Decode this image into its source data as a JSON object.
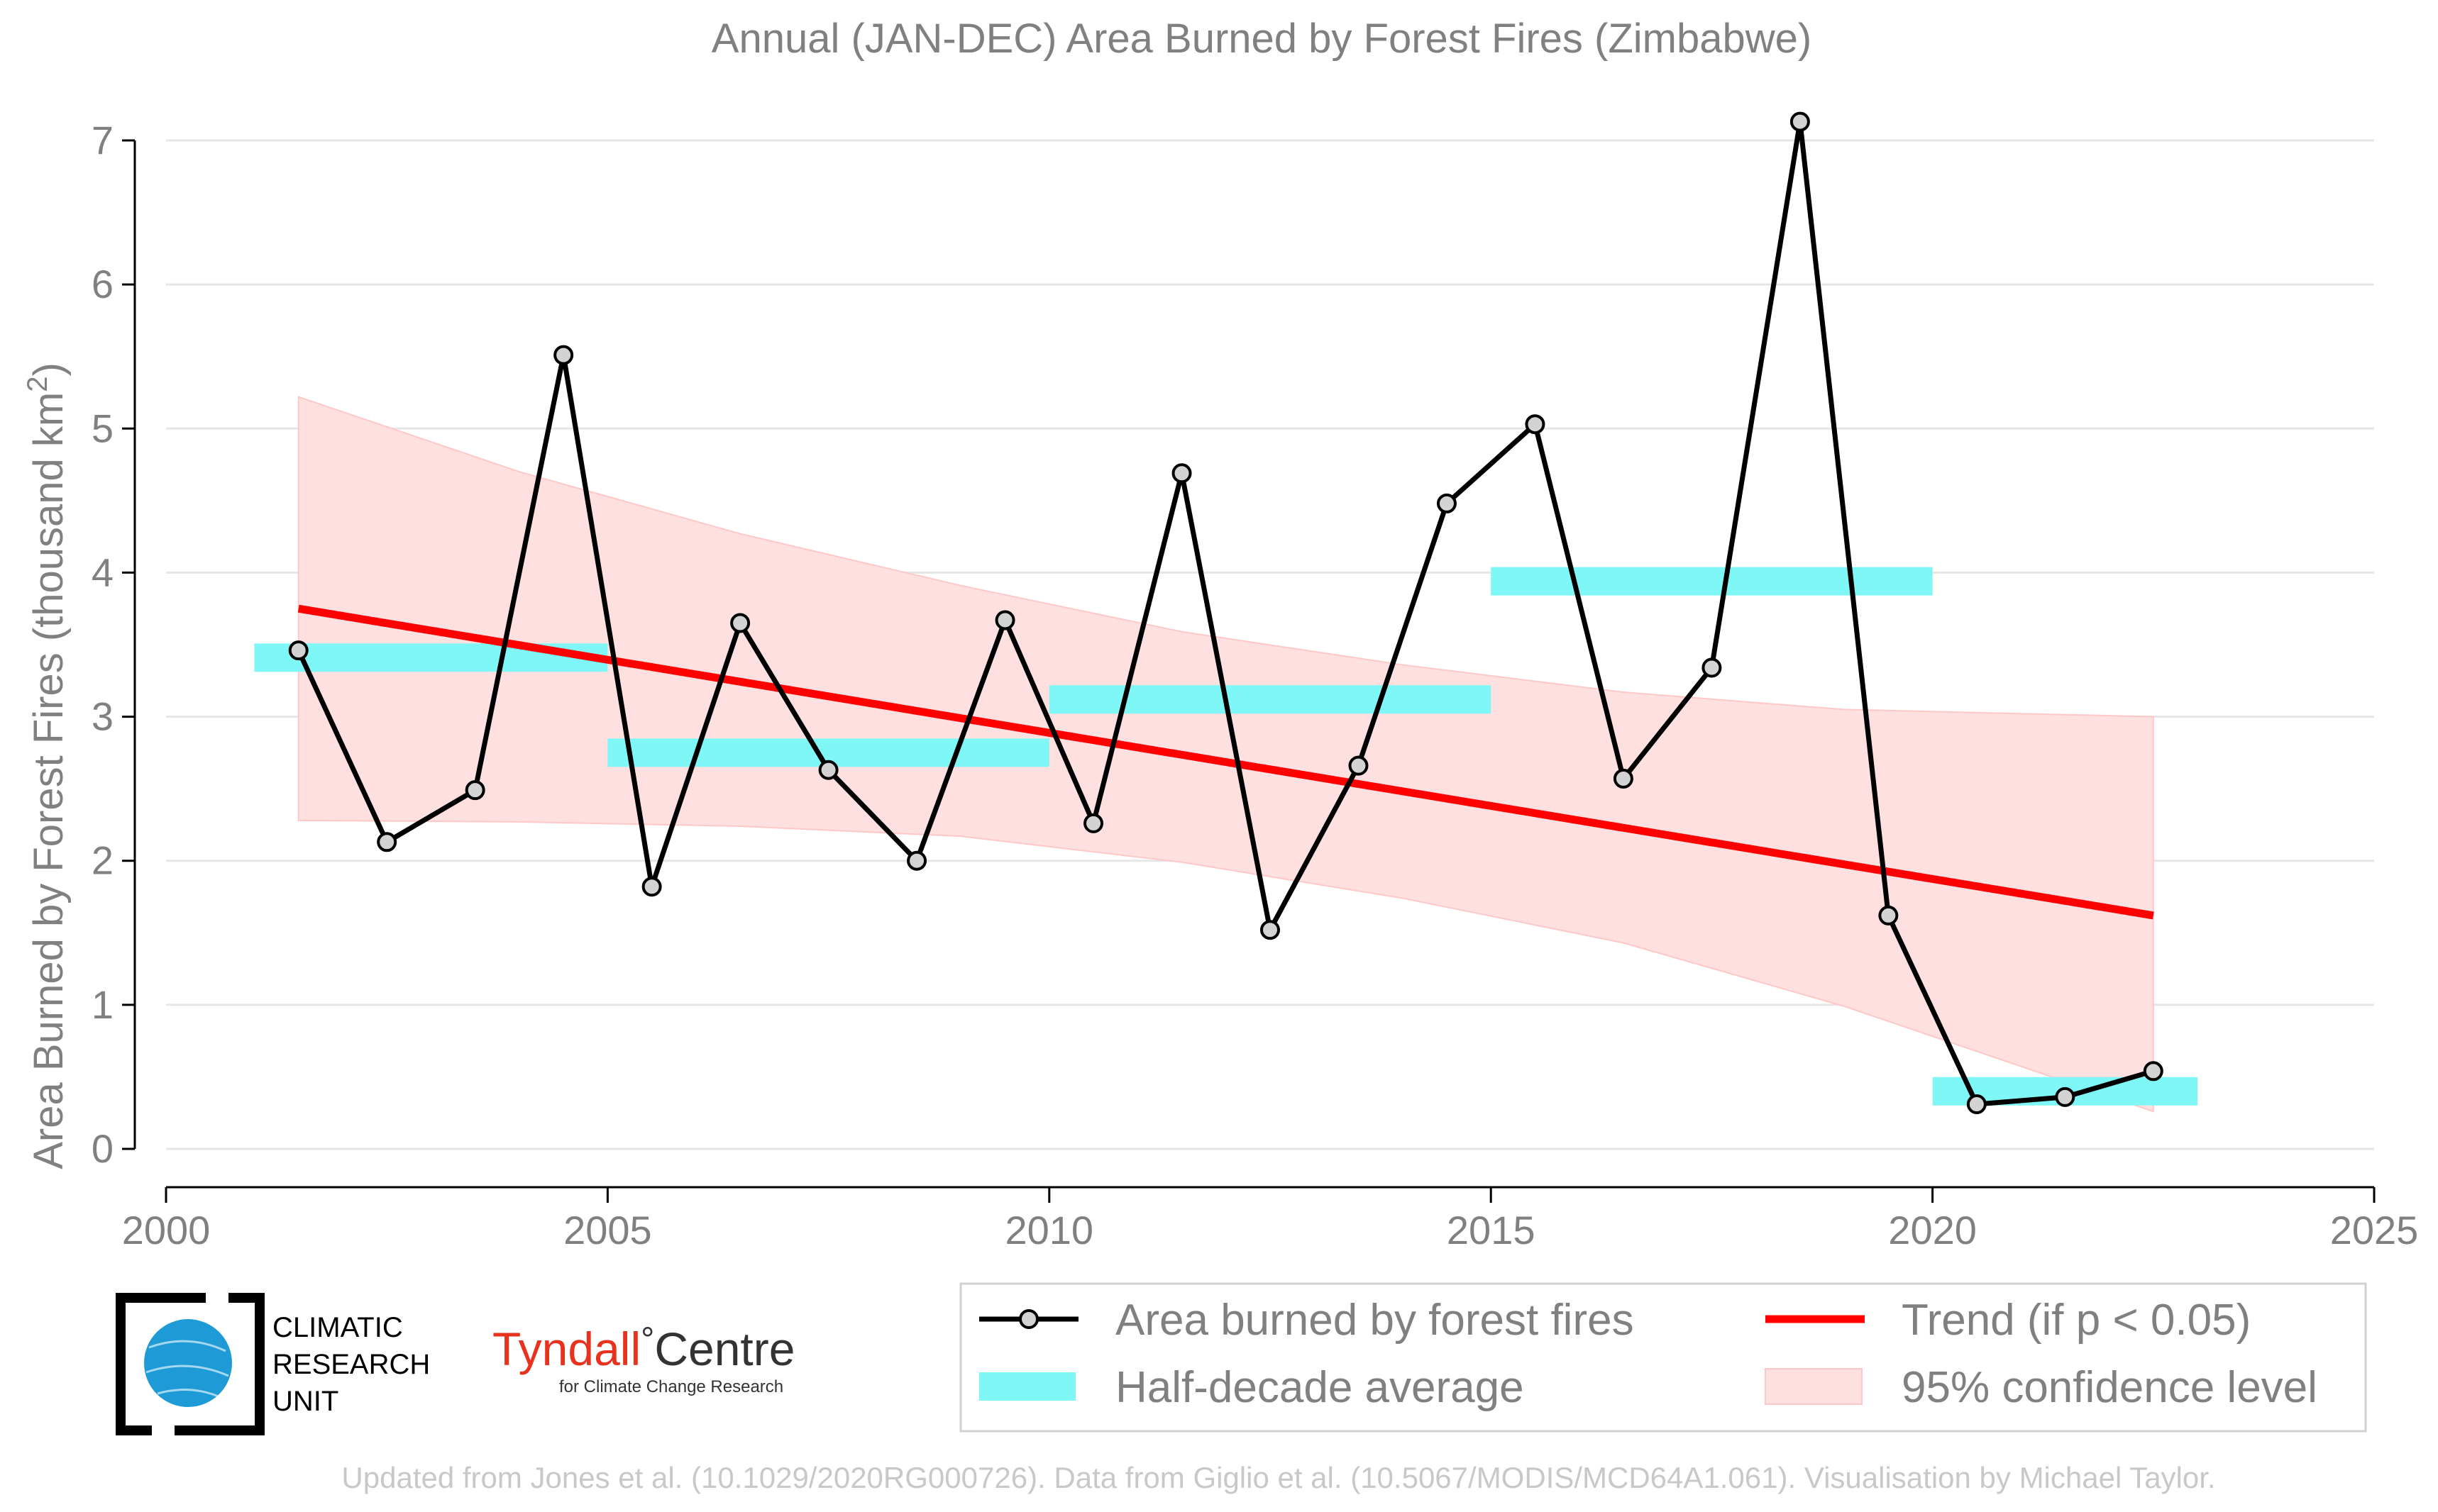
{
  "chart_data": {
    "type": "line",
    "title": "Annual (JAN-DEC) Area Burned by Forest Fires (Zimbabwe)",
    "ylabel_main": "Area Burned by Forest Fires (thousand km",
    "ylabel_sup": "2",
    "ylabel_close": ")",
    "xlim": [
      2000,
      2025
    ],
    "ylim": [
      0,
      7
    ],
    "x_ticks": [
      2000,
      2005,
      2010,
      2015,
      2020,
      2025
    ],
    "y_ticks": [
      0,
      1,
      2,
      3,
      4,
      5,
      6,
      7
    ],
    "grid": true,
    "series": [
      {
        "name": "Area burned by forest fires",
        "x": [
          2001.5,
          2002.5,
          2003.5,
          2004.5,
          2005.5,
          2006.5,
          2007.5,
          2008.5,
          2009.5,
          2010.5,
          2011.5,
          2012.5,
          2013.5,
          2014.5,
          2015.5,
          2016.5,
          2017.5,
          2018.5,
          2019.5,
          2020.5,
          2021.5,
          2022.5
        ],
        "y": [
          3.46,
          2.13,
          2.49,
          5.51,
          1.82,
          3.65,
          2.63,
          2.0,
          3.67,
          2.26,
          4.69,
          1.52,
          2.66,
          4.48,
          5.03,
          2.57,
          3.34,
          7.13,
          1.62,
          0.31,
          0.36,
          0.54
        ]
      }
    ],
    "half_decade_average": [
      {
        "x_start": 2001,
        "x_end": 2005,
        "value": 3.41
      },
      {
        "x_start": 2005,
        "x_end": 2010,
        "value": 2.75
      },
      {
        "x_start": 2010,
        "x_end": 2015,
        "value": 3.12
      },
      {
        "x_start": 2015,
        "x_end": 2020,
        "value": 3.94
      },
      {
        "x_start": 2020,
        "x_end": 2023,
        "value": 0.4
      }
    ],
    "trend": {
      "x_start": 2001.5,
      "y_start": 3.75,
      "x_end": 2022.5,
      "y_end": 1.62
    },
    "confidence_band": {
      "x": [
        2001.5,
        2004,
        2006.5,
        2009,
        2011.5,
        2014,
        2016.5,
        2019,
        2022.5
      ],
      "upper": [
        5.22,
        4.7,
        4.27,
        3.91,
        3.59,
        3.36,
        3.17,
        3.05,
        3.0
      ],
      "lower": [
        2.28,
        2.27,
        2.24,
        2.17,
        1.99,
        1.74,
        1.43,
        0.99,
        0.26
      ]
    },
    "legend": {
      "placement": "bottom-right",
      "items": [
        "Area burned by forest fires",
        "Trend (if p < 0.05)",
        "Half-decade average",
        "95% confidence level"
      ]
    },
    "colors": {
      "series_line": "#000000",
      "marker_fill": "#d3d3d3",
      "trend": "#ff0000",
      "half_decade": "#7ff7f7",
      "confidence": "#ffe0e0",
      "confidence_edge": "#ffc8c8",
      "text": "#808080"
    }
  },
  "logos": {
    "cru_lines": [
      "CLIMATIC",
      "RESEARCH",
      "UNIT"
    ],
    "tyndall_name": "Tyndall",
    "tyndall_degree": "°",
    "tyndall_centre": "Centre",
    "tyndall_sub": "for Climate Change Research"
  },
  "footer": "Updated from Jones et al. (10.1029/2020RG000726). Data from Giglio et al. (10.5067/MODIS/MCD64A1.061). Visualisation by Michael Taylor."
}
